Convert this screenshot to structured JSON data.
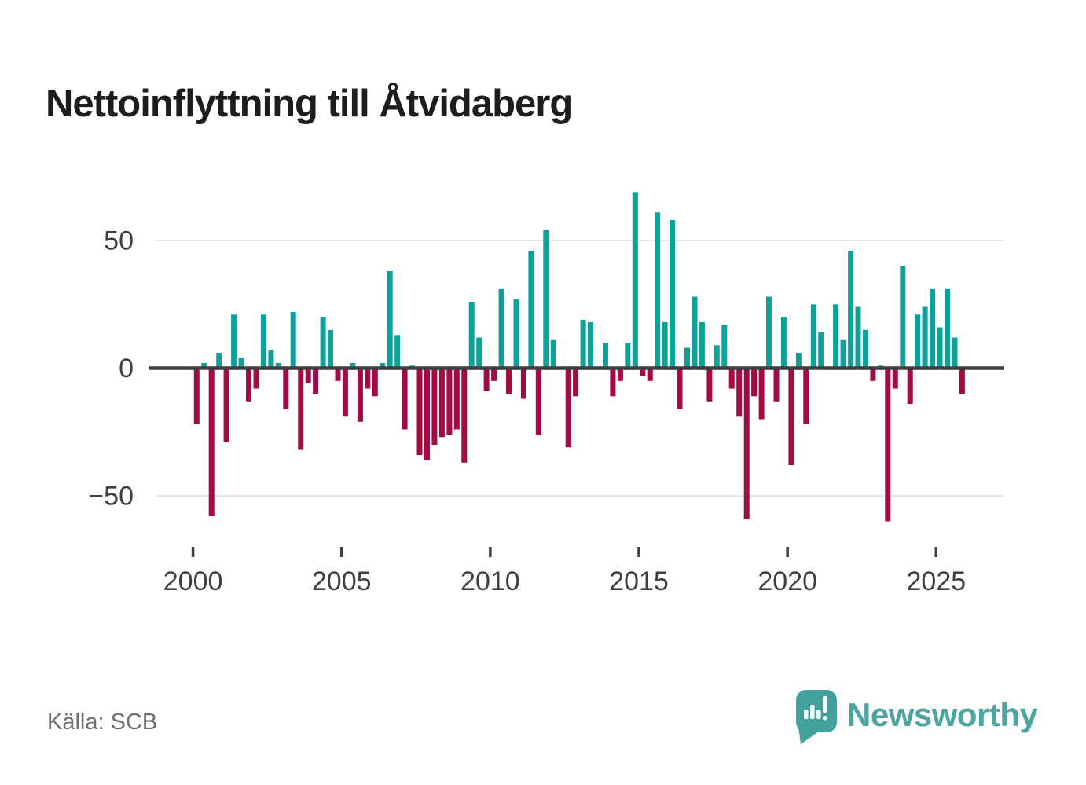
{
  "title": "Nettoinflyttning till Åtvidaberg",
  "source": "Källa: SCB",
  "brand": {
    "name": "Newsworthy"
  },
  "colors": {
    "positive": "#0ba29a",
    "negative": "#a30b45",
    "zero_axis": "#3f3f3f",
    "grid": "#e6e6e6",
    "axis_label": "#3f3f3f",
    "title_text": "#1d1d1d",
    "source_text": "#6f6f6f",
    "brand_teal": "#4ba5a0",
    "background": "#ffffff"
  },
  "chart_data": {
    "type": "bar",
    "title": "Nettoinflyttning till Åtvidaberg",
    "frequency": "quarterly",
    "start_period": "2000Q1",
    "end_period": "2025Q4",
    "unit": "persons (net migration per quarter)",
    "grid": "horizontal",
    "legend": "none",
    "ylim": [
      -65,
      75
    ],
    "y_ticks": [
      50,
      0,
      -50
    ],
    "y_tick_labels": [
      "50",
      "0",
      "−50"
    ],
    "x_tick_years": [
      2000,
      2005,
      2010,
      2015,
      2020,
      2025
    ],
    "x_tick_labels": [
      "2000",
      "2005",
      "2010",
      "2015",
      "2020",
      "2025"
    ],
    "values_by_year": {
      "2000": [
        -22,
        2,
        -58,
        6
      ],
      "2001": [
        -29,
        21,
        4,
        -13
      ],
      "2002": [
        -8,
        21,
        7,
        2
      ],
      "2003": [
        -16,
        22,
        -32,
        -6
      ],
      "2004": [
        -10,
        20,
        15,
        -5
      ],
      "2005": [
        -19,
        2,
        -21,
        -8
      ],
      "2006": [
        -11,
        2,
        38,
        13
      ],
      "2007": [
        -24,
        1,
        -34,
        -36
      ],
      "2008": [
        -30,
        -27,
        -26,
        -24
      ],
      "2009": [
        -37,
        26,
        12,
        -9
      ],
      "2010": [
        -5,
        31,
        -10,
        27
      ],
      "2011": [
        -12,
        46,
        -26,
        54
      ],
      "2012": [
        11,
        0,
        -31,
        -11
      ],
      "2013": [
        19,
        18,
        0,
        10
      ],
      "2014": [
        -11,
        -5,
        10,
        69
      ],
      "2015": [
        -3,
        -5,
        61,
        18
      ],
      "2016": [
        58,
        -16,
        8,
        28
      ],
      "2017": [
        18,
        -13,
        9,
        17
      ],
      "2018": [
        -8,
        -19,
        -59,
        -11
      ],
      "2019": [
        -20,
        28,
        -13,
        20
      ],
      "2020": [
        -38,
        6,
        -22,
        25
      ],
      "2021": [
        14,
        0,
        25,
        11
      ],
      "2022": [
        46,
        24,
        15,
        -5
      ],
      "2023": [
        1,
        -60,
        -8,
        40
      ],
      "2024": [
        -14,
        21,
        24,
        31
      ],
      "2025": [
        16,
        31,
        12,
        -10
      ]
    }
  }
}
